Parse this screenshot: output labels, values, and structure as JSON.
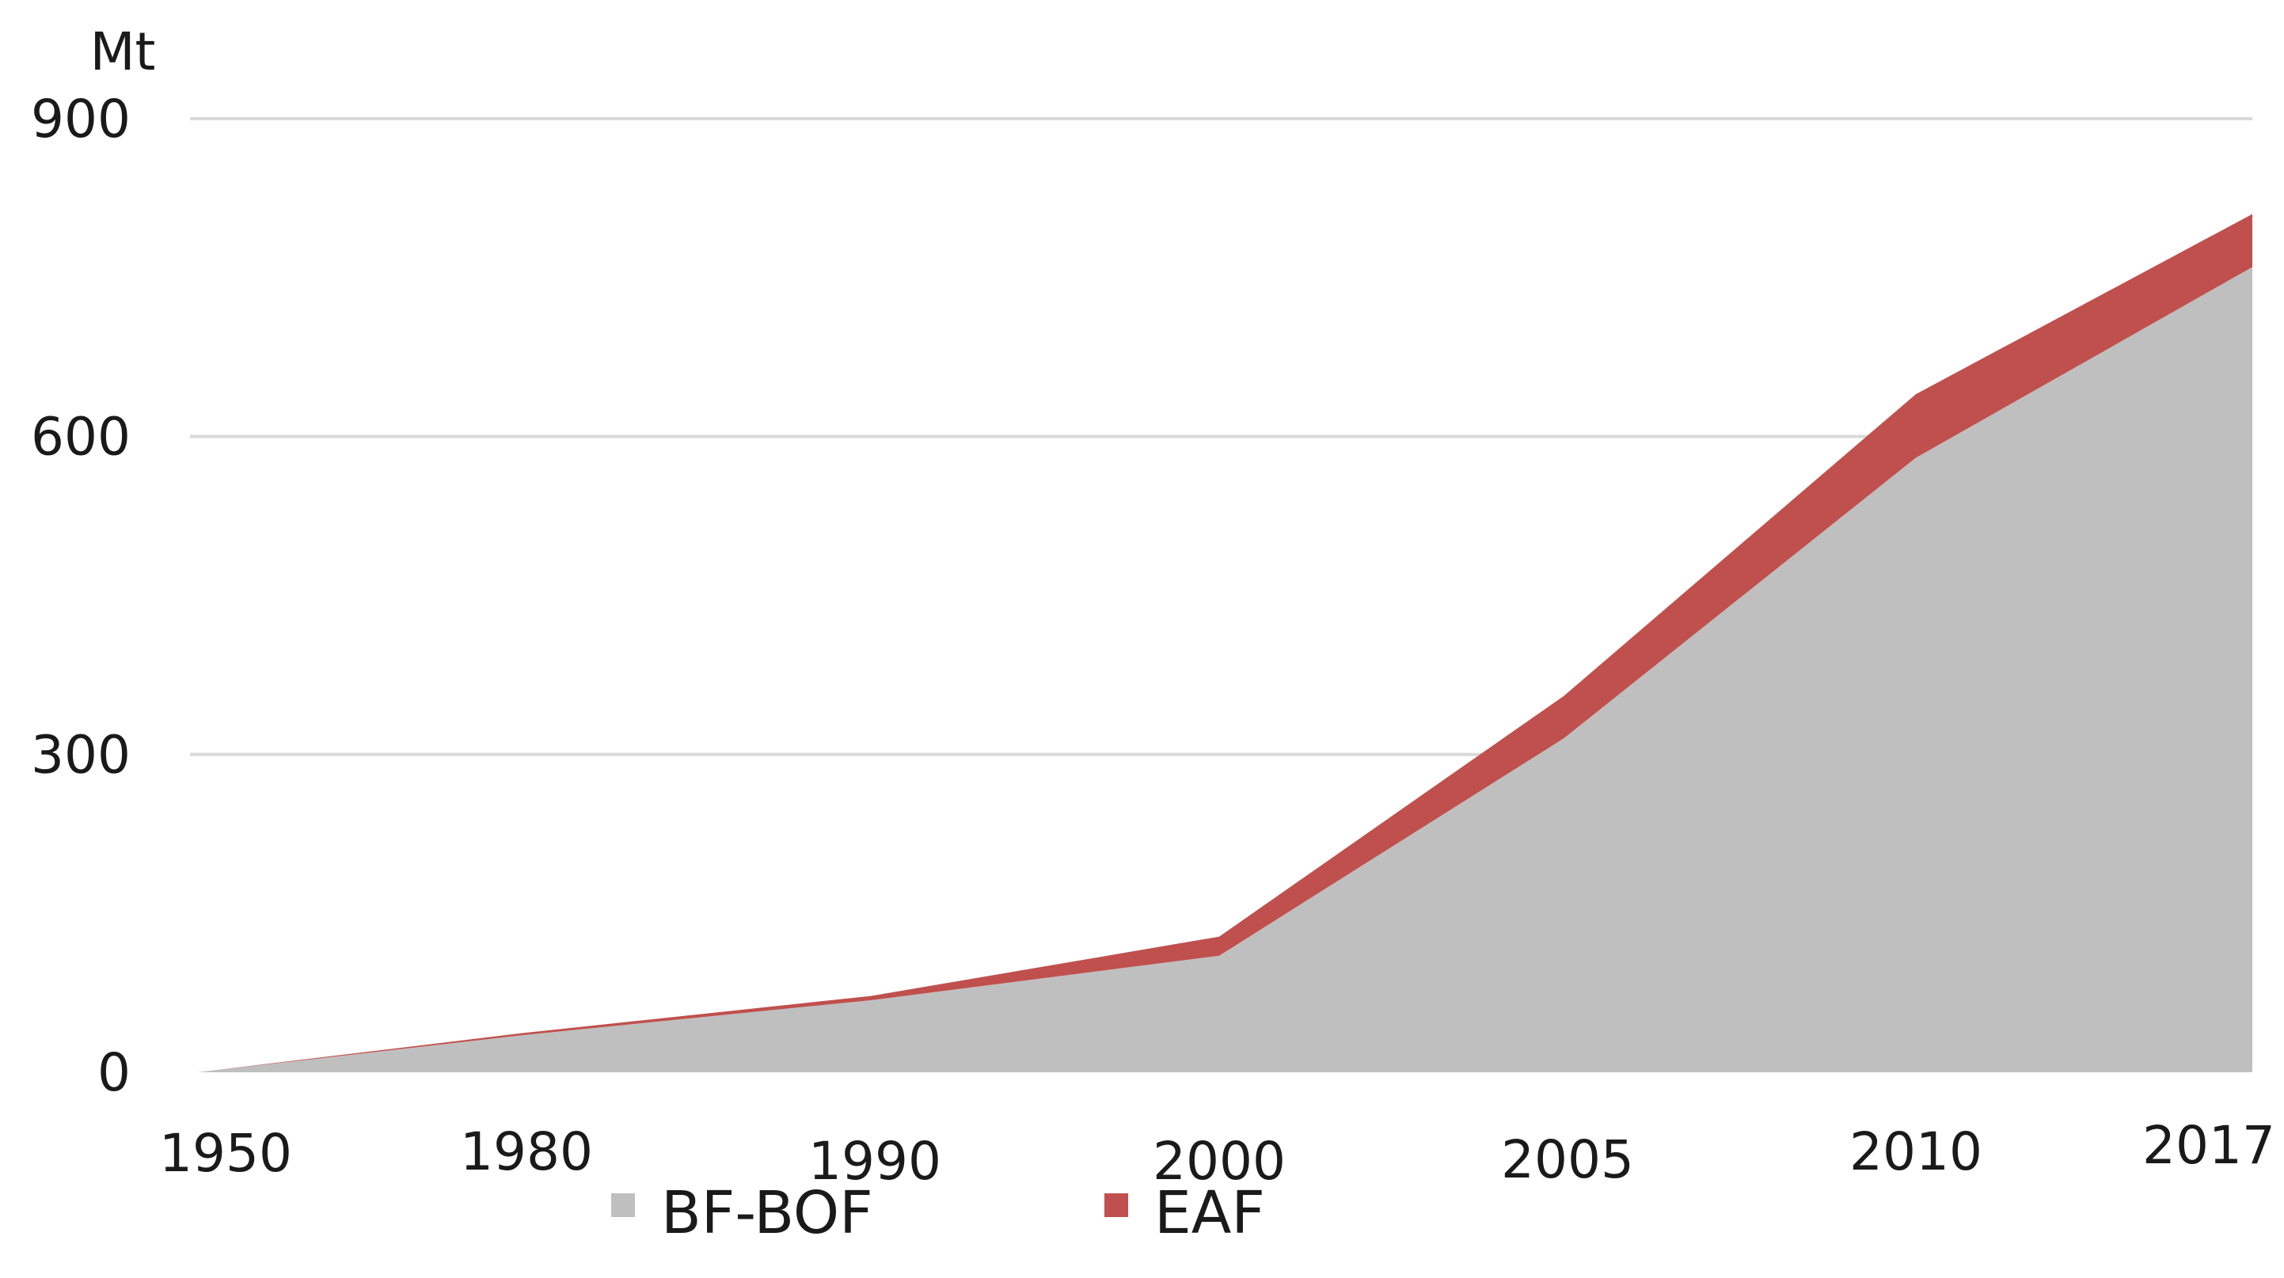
{
  "chart_data": {
    "type": "area",
    "stacked": true,
    "ylabel": "Mt",
    "categories": [
      "1950",
      "1980",
      "1990",
      "2000",
      "2005",
      "2010",
      "2017"
    ],
    "series": [
      {
        "name": "BF-BOF",
        "color": "#bfbfbf",
        "values": [
          0,
          35,
          68,
          110,
          315,
          580,
          760
        ]
      },
      {
        "name": "EAF",
        "color": "#c0504d",
        "values": [
          0,
          2,
          4,
          18,
          40,
          60,
          50
        ]
      }
    ],
    "ylim": [
      0,
      900
    ],
    "yticks": [
      "0",
      "300",
      "600",
      "900"
    ],
    "grid": true,
    "legend_position": "bottom"
  }
}
